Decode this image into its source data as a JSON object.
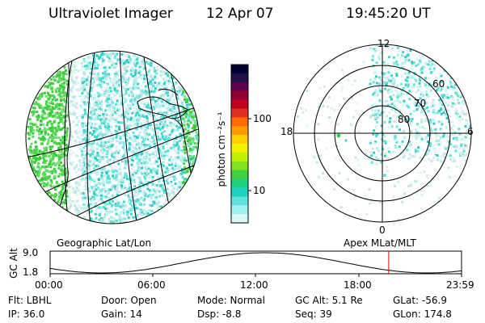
{
  "header": {
    "title": "Ultraviolet Imager",
    "date": "12 Apr 07",
    "time": "19:45:20 UT"
  },
  "colorbar": {
    "unit_label": "photon cm⁻²s⁻¹",
    "ticks": [
      "100",
      "10"
    ],
    "colors": [
      "#000030",
      "#20104a",
      "#600050",
      "#900030",
      "#c00020",
      "#e03020",
      "#ff6a00",
      "#ff9a00",
      "#ffd000",
      "#f0f000",
      "#c0f000",
      "#80e020",
      "#40d040",
      "#20d080",
      "#20d0c0",
      "#60e0e0",
      "#a0f0f0",
      "#d8f8f8"
    ]
  },
  "polar_plot": {
    "mlt_labels": [
      "12",
      "18",
      "6",
      "0"
    ],
    "lat_labels": [
      "60",
      "70",
      "80"
    ]
  },
  "plot_titles": {
    "left": "Geographic Lat/Lon",
    "right": "Apex  MLat/MLT"
  },
  "altitude_plot": {
    "axis_label": "GC Alt",
    "y_max": "9.0",
    "y_min": "1.8",
    "x_ticks": [
      "00:00",
      "06:00",
      "12:00",
      "18:00",
      "23:59"
    ],
    "current_time_marker_hours": 19.75,
    "marker_color": "#e00000"
  },
  "info": {
    "flt": "Flt: LBHL",
    "ip": "IP: 36.0",
    "door": "Door: Open",
    "gain": "Gain: 14",
    "mode": "Mode: Normal",
    "dsp": "Dsp:    -8.8",
    "gc_alt": "GC Alt: 5.1 Re",
    "seq": "Seq: 39",
    "glat": "GLat: -56.9",
    "glon": "GLon: 174.8"
  }
}
